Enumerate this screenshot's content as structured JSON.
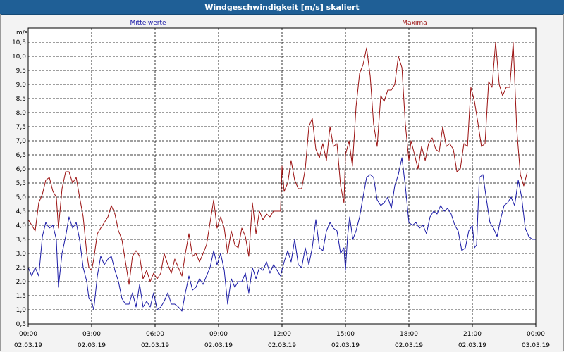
{
  "window": {
    "title": "Windgeschwindigkeit [m/s] skaliert"
  },
  "chart_data": {
    "type": "line",
    "title": "Windgeschwindigkeit [m/s] skaliert",
    "ylabel": "m/s",
    "xlabel": "",
    "ylim": [
      0.5,
      11.0
    ],
    "xlim": [
      0,
      24
    ],
    "grid": true,
    "yticks": [
      "0,5",
      "1,0",
      "1,5",
      "2,0",
      "2,5",
      "3,0",
      "3,5",
      "4,0",
      "4,5",
      "5,0",
      "5,5",
      "6,0",
      "6,5",
      "7,0",
      "7,5",
      "8,0",
      "8,5",
      "9,0",
      "9,5",
      "10,0",
      "10,5"
    ],
    "xticks": [
      {
        "time": "00:00",
        "date": "02.03.19"
      },
      {
        "time": "03:00",
        "date": "02.03.19"
      },
      {
        "time": "06:00",
        "date": "02.03.19"
      },
      {
        "time": "09:00",
        "date": "02.03.19"
      },
      {
        "time": "12:00",
        "date": "02.03.19"
      },
      {
        "time": "15:00",
        "date": "02.03.19"
      },
      {
        "time": "18:00",
        "date": "02.03.19"
      },
      {
        "time": "21:00",
        "date": "02.03.19"
      },
      {
        "time": "00:00",
        "date": "03.03.19"
      }
    ],
    "series": [
      {
        "name": "Mittelwerte",
        "color": "#1a1aa6",
        "points": [
          [
            0.0,
            2.5
          ],
          [
            0.17,
            2.2
          ],
          [
            0.33,
            2.5
          ],
          [
            0.5,
            2.2
          ],
          [
            0.67,
            3.6
          ],
          [
            0.83,
            4.1
          ],
          [
            1.0,
            3.9
          ],
          [
            1.17,
            4.0
          ],
          [
            1.33,
            3.5
          ],
          [
            1.43,
            1.8
          ],
          [
            1.6,
            3.0
          ],
          [
            1.77,
            3.6
          ],
          [
            1.93,
            4.3
          ],
          [
            2.1,
            3.9
          ],
          [
            2.27,
            4.1
          ],
          [
            2.43,
            3.5
          ],
          [
            2.6,
            2.5
          ],
          [
            2.77,
            2.0
          ],
          [
            2.87,
            1.4
          ],
          [
            3.0,
            1.3
          ],
          [
            3.1,
            1.0
          ],
          [
            3.27,
            2.2
          ],
          [
            3.43,
            2.9
          ],
          [
            3.6,
            2.6
          ],
          [
            3.77,
            2.8
          ],
          [
            3.93,
            2.9
          ],
          [
            4.1,
            2.4
          ],
          [
            4.27,
            2.0
          ],
          [
            4.43,
            1.4
          ],
          [
            4.6,
            1.2
          ],
          [
            4.77,
            1.2
          ],
          [
            4.93,
            1.6
          ],
          [
            5.1,
            1.1
          ],
          [
            5.27,
            1.9
          ],
          [
            5.43,
            1.1
          ],
          [
            5.6,
            1.3
          ],
          [
            5.77,
            1.1
          ],
          [
            5.93,
            1.6
          ],
          [
            6.1,
            1.0
          ],
          [
            6.27,
            1.1
          ],
          [
            6.43,
            1.3
          ],
          [
            6.6,
            1.6
          ],
          [
            6.77,
            1.2
          ],
          [
            6.93,
            1.2
          ],
          [
            7.1,
            1.1
          ],
          [
            7.27,
            0.95
          ],
          [
            7.43,
            1.6
          ],
          [
            7.6,
            2.2
          ],
          [
            7.77,
            1.7
          ],
          [
            7.93,
            1.8
          ],
          [
            8.1,
            2.1
          ],
          [
            8.27,
            1.9
          ],
          [
            8.43,
            2.2
          ],
          [
            8.6,
            2.5
          ],
          [
            8.77,
            3.1
          ],
          [
            8.93,
            2.6
          ],
          [
            9.1,
            3.0
          ],
          [
            9.27,
            2.4
          ],
          [
            9.43,
            1.2
          ],
          [
            9.6,
            2.1
          ],
          [
            9.77,
            1.8
          ],
          [
            9.93,
            2.0
          ],
          [
            10.1,
            2.0
          ],
          [
            10.27,
            2.3
          ],
          [
            10.43,
            1.6
          ],
          [
            10.6,
            2.5
          ],
          [
            10.77,
            2.1
          ],
          [
            10.93,
            2.5
          ],
          [
            11.1,
            2.4
          ],
          [
            11.27,
            2.7
          ],
          [
            11.43,
            2.3
          ],
          [
            11.6,
            2.6
          ],
          [
            11.77,
            2.4
          ],
          [
            11.93,
            2.2
          ],
          [
            12.1,
            2.7
          ],
          [
            12.27,
            3.1
          ],
          [
            12.43,
            2.7
          ],
          [
            12.6,
            3.5
          ],
          [
            12.77,
            2.6
          ],
          [
            12.93,
            2.5
          ],
          [
            13.1,
            3.2
          ],
          [
            13.27,
            2.6
          ],
          [
            13.43,
            3.2
          ],
          [
            13.6,
            4.2
          ],
          [
            13.77,
            3.2
          ],
          [
            13.93,
            3.1
          ],
          [
            14.1,
            3.8
          ],
          [
            14.27,
            4.1
          ],
          [
            14.43,
            3.9
          ],
          [
            14.6,
            3.8
          ],
          [
            14.77,
            3.0
          ],
          [
            14.93,
            3.2
          ],
          [
            15.0,
            2.4
          ],
          [
            15.1,
            3.6
          ],
          [
            15.2,
            4.3
          ],
          [
            15.35,
            3.5
          ],
          [
            15.5,
            3.8
          ],
          [
            15.67,
            4.3
          ],
          [
            15.83,
            5.0
          ],
          [
            16.0,
            5.7
          ],
          [
            16.17,
            5.8
          ],
          [
            16.33,
            5.7
          ],
          [
            16.5,
            4.9
          ],
          [
            16.67,
            4.7
          ],
          [
            16.83,
            4.8
          ],
          [
            17.0,
            5.0
          ],
          [
            17.17,
            4.6
          ],
          [
            17.33,
            5.4
          ],
          [
            17.5,
            5.8
          ],
          [
            17.67,
            6.4
          ],
          [
            17.83,
            5.4
          ],
          [
            18.0,
            4.1
          ],
          [
            18.17,
            4.0
          ],
          [
            18.33,
            4.1
          ],
          [
            18.5,
            3.9
          ],
          [
            18.67,
            4.0
          ],
          [
            18.83,
            3.7
          ],
          [
            19.0,
            4.3
          ],
          [
            19.17,
            4.5
          ],
          [
            19.33,
            4.4
          ],
          [
            19.5,
            4.7
          ],
          [
            19.67,
            4.5
          ],
          [
            19.83,
            4.6
          ],
          [
            20.0,
            4.4
          ],
          [
            20.17,
            4.0
          ],
          [
            20.33,
            3.8
          ],
          [
            20.5,
            3.1
          ],
          [
            20.67,
            3.2
          ],
          [
            20.83,
            3.8
          ],
          [
            21.0,
            4.0
          ],
          [
            21.1,
            3.2
          ],
          [
            21.2,
            3.3
          ],
          [
            21.33,
            5.7
          ],
          [
            21.5,
            5.8
          ],
          [
            21.67,
            4.9
          ],
          [
            21.83,
            4.1
          ],
          [
            22.0,
            3.9
          ],
          [
            22.17,
            3.6
          ],
          [
            22.33,
            4.2
          ],
          [
            22.5,
            4.7
          ],
          [
            22.67,
            4.8
          ],
          [
            22.83,
            5.0
          ],
          [
            23.0,
            4.7
          ],
          [
            23.17,
            5.6
          ],
          [
            23.33,
            5.0
          ],
          [
            23.5,
            3.9
          ],
          [
            23.67,
            3.6
          ],
          [
            23.83,
            3.5
          ],
          [
            24.0,
            3.5
          ]
        ]
      },
      {
        "name": "Maxima",
        "color": "#9a1010",
        "points": [
          [
            0.0,
            4.2
          ],
          [
            0.17,
            4.0
          ],
          [
            0.33,
            3.8
          ],
          [
            0.5,
            4.8
          ],
          [
            0.67,
            5.1
          ],
          [
            0.83,
            5.6
          ],
          [
            1.0,
            5.7
          ],
          [
            1.17,
            5.2
          ],
          [
            1.33,
            5.0
          ],
          [
            1.43,
            3.9
          ],
          [
            1.6,
            5.3
          ],
          [
            1.77,
            5.9
          ],
          [
            1.93,
            5.9
          ],
          [
            2.1,
            5.5
          ],
          [
            2.27,
            5.7
          ],
          [
            2.43,
            5.0
          ],
          [
            2.6,
            4.3
          ],
          [
            2.77,
            3.0
          ],
          [
            2.87,
            2.5
          ],
          [
            3.0,
            2.4
          ],
          [
            3.1,
            2.8
          ],
          [
            3.27,
            3.7
          ],
          [
            3.43,
            3.9
          ],
          [
            3.6,
            4.1
          ],
          [
            3.77,
            4.3
          ],
          [
            3.93,
            4.7
          ],
          [
            4.1,
            4.4
          ],
          [
            4.27,
            3.8
          ],
          [
            4.43,
            3.5
          ],
          [
            4.6,
            2.7
          ],
          [
            4.77,
            1.9
          ],
          [
            4.93,
            2.9
          ],
          [
            5.1,
            3.1
          ],
          [
            5.27,
            2.9
          ],
          [
            5.43,
            2.1
          ],
          [
            5.6,
            2.4
          ],
          [
            5.77,
            2.0
          ],
          [
            5.93,
            2.3
          ],
          [
            6.1,
            2.1
          ],
          [
            6.27,
            2.3
          ],
          [
            6.43,
            3.0
          ],
          [
            6.6,
            2.6
          ],
          [
            6.77,
            2.3
          ],
          [
            6.93,
            2.8
          ],
          [
            7.1,
            2.5
          ],
          [
            7.27,
            2.2
          ],
          [
            7.43,
            3.0
          ],
          [
            7.6,
            3.7
          ],
          [
            7.77,
            2.9
          ],
          [
            7.93,
            3.0
          ],
          [
            8.1,
            2.7
          ],
          [
            8.27,
            3.0
          ],
          [
            8.43,
            3.3
          ],
          [
            8.6,
            4.1
          ],
          [
            8.77,
            4.9
          ],
          [
            8.93,
            3.9
          ],
          [
            9.1,
            4.3
          ],
          [
            9.27,
            3.9
          ],
          [
            9.43,
            3.0
          ],
          [
            9.6,
            3.8
          ],
          [
            9.77,
            3.3
          ],
          [
            9.93,
            3.2
          ],
          [
            10.1,
            3.9
          ],
          [
            10.27,
            3.6
          ],
          [
            10.43,
            2.9
          ],
          [
            10.6,
            4.8
          ],
          [
            10.77,
            3.7
          ],
          [
            10.93,
            4.5
          ],
          [
            11.1,
            4.2
          ],
          [
            11.27,
            4.4
          ],
          [
            11.43,
            4.3
          ],
          [
            11.6,
            4.5
          ],
          [
            11.77,
            4.5
          ],
          [
            11.93,
            4.5
          ],
          [
            12.0,
            6.1
          ],
          [
            12.1,
            5.2
          ],
          [
            12.27,
            5.5
          ],
          [
            12.43,
            6.3
          ],
          [
            12.6,
            5.6
          ],
          [
            12.77,
            5.3
          ],
          [
            12.93,
            5.3
          ],
          [
            13.1,
            6.0
          ],
          [
            13.27,
            7.5
          ],
          [
            13.43,
            7.8
          ],
          [
            13.6,
            6.7
          ],
          [
            13.77,
            6.4
          ],
          [
            13.93,
            6.9
          ],
          [
            14.1,
            6.3
          ],
          [
            14.27,
            7.5
          ],
          [
            14.43,
            6.8
          ],
          [
            14.6,
            6.9
          ],
          [
            14.77,
            5.4
          ],
          [
            14.93,
            4.8
          ],
          [
            15.0,
            6.5
          ],
          [
            15.17,
            7.0
          ],
          [
            15.33,
            6.1
          ],
          [
            15.5,
            8.2
          ],
          [
            15.67,
            9.4
          ],
          [
            15.83,
            9.7
          ],
          [
            16.0,
            10.3
          ],
          [
            16.17,
            9.3
          ],
          [
            16.33,
            7.6
          ],
          [
            16.5,
            6.8
          ],
          [
            16.67,
            8.6
          ],
          [
            16.83,
            8.4
          ],
          [
            17.0,
            8.8
          ],
          [
            17.17,
            8.8
          ],
          [
            17.33,
            9.0
          ],
          [
            17.5,
            10.0
          ],
          [
            17.67,
            9.6
          ],
          [
            17.83,
            7.6
          ],
          [
            18.0,
            6.3
          ],
          [
            18.1,
            7.0
          ],
          [
            18.27,
            6.5
          ],
          [
            18.43,
            6.0
          ],
          [
            18.6,
            6.8
          ],
          [
            18.77,
            6.3
          ],
          [
            18.93,
            6.9
          ],
          [
            19.1,
            7.1
          ],
          [
            19.27,
            6.7
          ],
          [
            19.43,
            6.6
          ],
          [
            19.6,
            7.5
          ],
          [
            19.77,
            6.8
          ],
          [
            19.93,
            6.9
          ],
          [
            20.1,
            6.7
          ],
          [
            20.27,
            5.9
          ],
          [
            20.43,
            6.0
          ],
          [
            20.6,
            6.9
          ],
          [
            20.77,
            6.8
          ],
          [
            20.93,
            8.9
          ],
          [
            21.1,
            8.4
          ],
          [
            21.27,
            7.6
          ],
          [
            21.43,
            6.8
          ],
          [
            21.6,
            6.9
          ],
          [
            21.77,
            9.1
          ],
          [
            21.93,
            8.9
          ],
          [
            22.1,
            10.5
          ],
          [
            22.27,
            9.0
          ],
          [
            22.43,
            8.6
          ],
          [
            22.6,
            8.9
          ],
          [
            22.77,
            8.9
          ],
          [
            22.93,
            10.5
          ],
          [
            23.1,
            7.4
          ],
          [
            23.27,
            5.8
          ],
          [
            23.43,
            5.4
          ],
          [
            23.6,
            5.9
          ]
        ]
      }
    ]
  }
}
